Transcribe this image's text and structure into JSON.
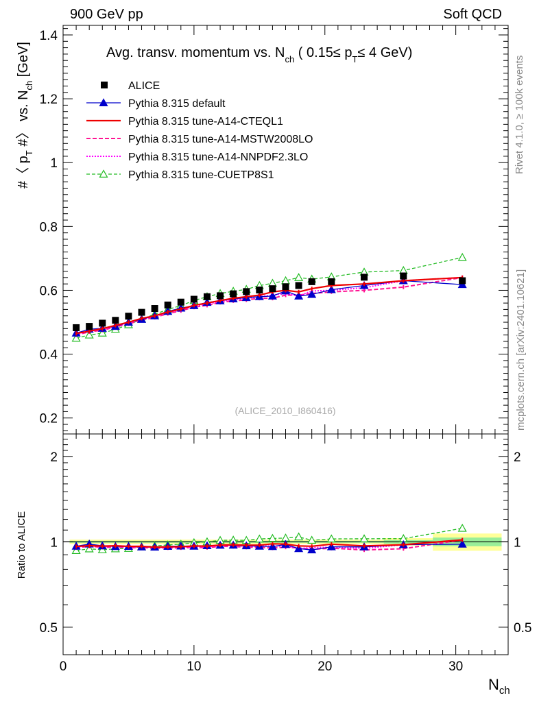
{
  "header": {
    "left": "900 GeV pp",
    "right": "Soft QCD"
  },
  "side_labels": {
    "rivet": "Rivet 4.1.0, ≥ 100k events",
    "mcplots": "mcplots.cern.ch [arXiv:2401.10621]"
  },
  "chart_data": {
    "type": "line",
    "title": "Avg. transv. momentum vs. N_ch ( 0.15 ≤ p_T ≤ 4 GeV)",
    "title_parts": {
      "main": "Avg. transv. momentum vs. N",
      "ch": "ch",
      "range_open": " ( 0.15≤ p",
      "T": "T",
      "range_close": "≤ 4 GeV)"
    },
    "analysis_tag": "(ALICE_2010_I860416)",
    "xlabel": "N",
    "xlabel_sub": "ch",
    "ylabel": "#〈 p_T #〉 vs. N_ch [GeV]",
    "ratio_ylabel": "Ratio to ALICE",
    "xlim": [
      0,
      34
    ],
    "ylim": [
      0.15,
      1.43
    ],
    "ratio_ylim": [
      0.4,
      2.4
    ],
    "x_ticks": [
      0,
      10,
      20,
      30
    ],
    "y_ticks": [
      0.2,
      0.4,
      0.6,
      0.8,
      1,
      1.2,
      1.4
    ],
    "y_tick_labels": [
      "0.2",
      "0.4",
      "0.6",
      "0.8",
      "1",
      "1.2",
      "1.4"
    ],
    "ratio_ticks": [
      0.5,
      1,
      2
    ],
    "ratio_tick_labels": [
      "0.5",
      "1",
      "2"
    ],
    "x": [
      1,
      2,
      3,
      4,
      5,
      6,
      7,
      8,
      9,
      10,
      11,
      12,
      13,
      14,
      15,
      16,
      17,
      18,
      19,
      20.5,
      23,
      26,
      30.5
    ],
    "series": [
      {
        "name": "ALICE",
        "style": "data",
        "color": "#000000",
        "values": [
          0.483,
          0.487,
          0.497,
          0.506,
          0.519,
          0.531,
          0.543,
          0.554,
          0.563,
          0.572,
          0.58,
          0.583,
          0.589,
          0.596,
          0.601,
          0.605,
          0.611,
          0.615,
          0.627,
          0.627,
          0.641,
          0.645,
          0.63
        ]
      },
      {
        "name": "Pythia 8.315 default",
        "style": "blue-solid-triangle",
        "color": "#0000cc",
        "values": [
          0.466,
          0.478,
          0.481,
          0.487,
          0.5,
          0.509,
          0.52,
          0.534,
          0.544,
          0.552,
          0.562,
          0.567,
          0.573,
          0.577,
          0.58,
          0.582,
          0.598,
          0.582,
          0.587,
          0.602,
          0.615,
          0.63,
          0.618
        ]
      },
      {
        "name": "Pythia 8.315 tune-A14-CTEQL1",
        "style": "red-solid",
        "color": "#ee0000",
        "values": [
          0.465,
          0.472,
          0.48,
          0.49,
          0.5,
          0.512,
          0.52,
          0.532,
          0.541,
          0.553,
          0.56,
          0.568,
          0.575,
          0.58,
          0.585,
          0.595,
          0.6,
          0.595,
          0.605,
          0.615,
          0.62,
          0.63,
          0.64
        ]
      },
      {
        "name": "Pythia 8.315 tune-A14-MSTW2008LO",
        "style": "magenta-dashed",
        "color": "#ff1493",
        "values": [
          0.46,
          0.47,
          0.475,
          0.485,
          0.495,
          0.507,
          0.515,
          0.527,
          0.536,
          0.547,
          0.553,
          0.562,
          0.567,
          0.57,
          0.575,
          0.575,
          0.585,
          0.585,
          0.59,
          0.595,
          0.6,
          0.61,
          0.64
        ]
      },
      {
        "name": "Pythia 8.315 tune-A14-NNPDF2.3LO",
        "style": "magenta-dotted",
        "color": "#ff00ff",
        "values": [
          0.462,
          0.472,
          0.478,
          0.487,
          0.498,
          0.51,
          0.518,
          0.53,
          0.539,
          0.55,
          0.557,
          0.565,
          0.571,
          0.575,
          0.58,
          0.585,
          0.59,
          0.582,
          0.598,
          0.6,
          0.608,
          0.63,
          0.64
        ]
      },
      {
        "name": "Pythia 8.315 tune-CUETP8S1",
        "style": "green-dashed-open-triangle",
        "color": "#22bb22",
        "values": [
          0.45,
          0.46,
          0.466,
          0.478,
          0.492,
          0.51,
          0.525,
          0.54,
          0.552,
          0.568,
          0.58,
          0.59,
          0.597,
          0.603,
          0.615,
          0.622,
          0.63,
          0.64,
          0.635,
          0.642,
          0.657,
          0.662,
          0.703
        ]
      }
    ]
  }
}
